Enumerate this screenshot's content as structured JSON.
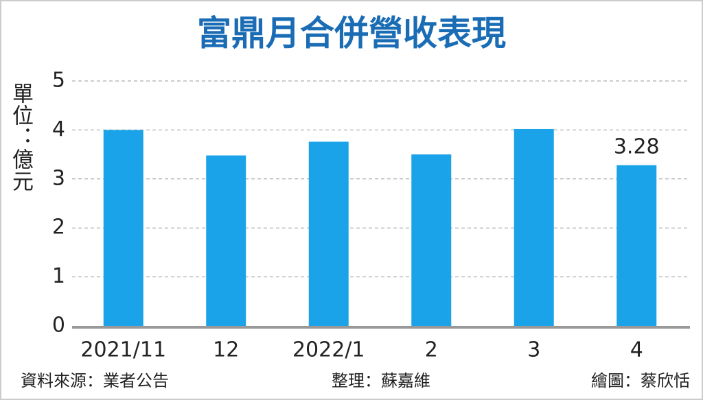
{
  "chart_data": {
    "type": "bar",
    "title": "富鼎月合併營收表現",
    "y_label": "單位：億元",
    "categories": [
      "2021/11",
      "12",
      "2022/1",
      "2",
      "3",
      "4"
    ],
    "values": [
      4.0,
      3.48,
      3.76,
      3.5,
      4.02,
      3.28
    ],
    "value_labels": [
      null,
      null,
      null,
      null,
      null,
      "3.28"
    ],
    "color": "#1aa3e8",
    "ylim": [
      0,
      5
    ],
    "yticks": [
      0,
      1,
      2,
      3,
      4,
      5
    ],
    "grid": true,
    "notes": {
      "source": "資料來源：業者公告",
      "editor": "整理：蘇嘉維",
      "graphic": "繪圖：蔡欣恬"
    }
  }
}
